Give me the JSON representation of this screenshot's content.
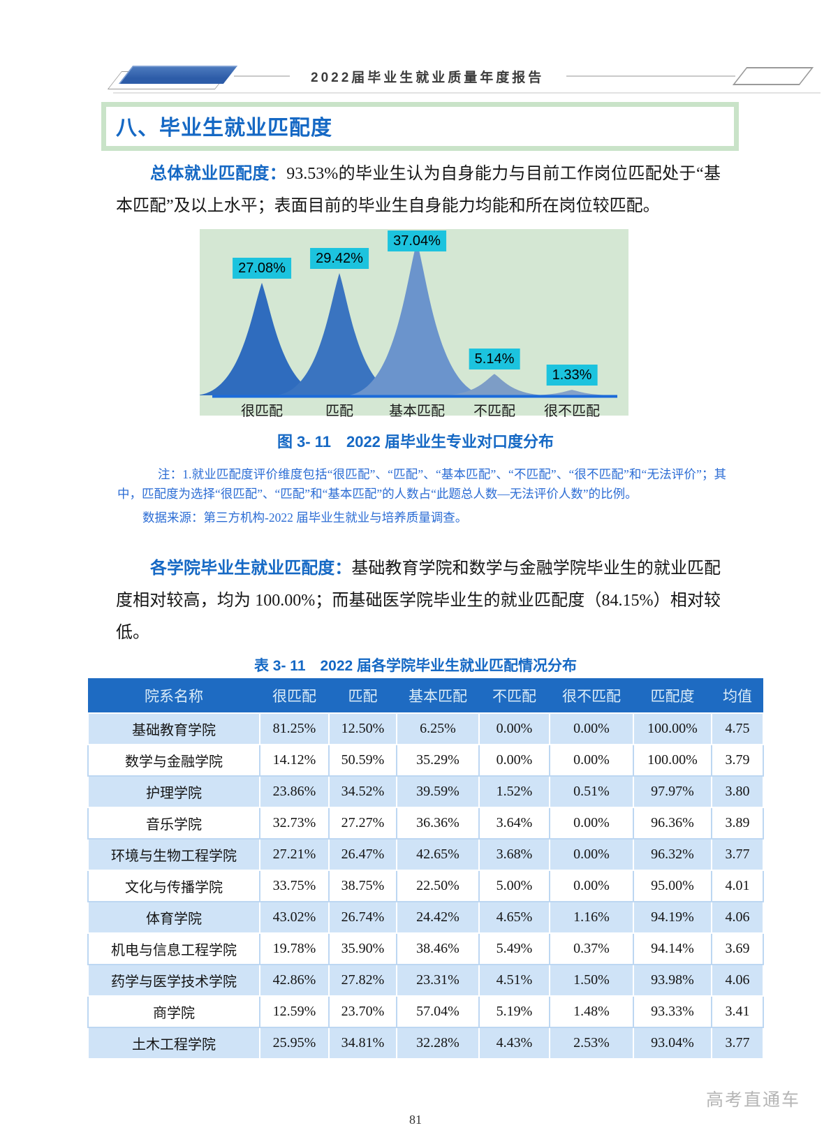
{
  "theme": {
    "accent_blue": "#1568c4",
    "note_blue": "#2b6cd4",
    "table_header_bg": "#1e6bc2",
    "table_header_text": "#dcedf8",
    "row_alt_bg": "#cfe3f7",
    "green_border": "#c9e3c8",
    "chart_bg": "#d4e7d3",
    "tag_bg": "#1cc3de",
    "deco_blue": "#2d5ca8",
    "watermark_gray": "#b5b5b5"
  },
  "header": {
    "title": "2022届毕业生就业质量年度报告"
  },
  "section": {
    "title": "八、毕业生就业匹配度"
  },
  "para1": {
    "lead": "总体就业匹配度：",
    "body": "93.53%的毕业生认为自身能力与目前工作岗位匹配处于“基本匹配”及以上水平；表面目前的毕业生自身能力均能和所在岗位较匹配。"
  },
  "chart_data": {
    "type": "area",
    "title": "图 3- 11　2022 届毕业生专业对口度分布",
    "categories": [
      "很匹配",
      "匹配",
      "基本匹配",
      "不匹配",
      "很不匹配"
    ],
    "values": [
      27.08,
      29.42,
      37.04,
      5.14,
      1.33
    ],
    "labels": [
      "27.08%",
      "29.42%",
      "37.04%",
      "5.14%",
      "1.33%"
    ],
    "colors": [
      "#2f6cbe",
      "#3a74c0",
      "#6b94cc",
      "#7d9dc6",
      "#86a2c8"
    ],
    "label_bg": "#1cc3de",
    "axis_color": "#1c6bd9",
    "background": "#d4e7d3",
    "ylim": [
      0,
      40
    ],
    "grid": false,
    "legend": "none"
  },
  "figure": {
    "caption": "图 3- 11　2022 届毕业生专业对口度分布"
  },
  "notes": {
    "note1": "注：1.就业匹配度评价维度包括“很匹配”、“匹配”、“基本匹配”、“不匹配”、“很不匹配”和“无法评价”；其中，匹配度为选择“很匹配”、“匹配”和“基本匹配”的人数占“此题总人数—无法评价人数”的比例。",
    "source": "数据来源：第三方机构-2022 届毕业生就业与培养质量调查。"
  },
  "para2": {
    "lead": "各学院毕业生就业匹配度：",
    "body": "基础教育学院和数学与金融学院毕业生的就业匹配度相对较高，均为 100.00%；而基础医学院毕业生的就业匹配度（84.15%）相对较低。"
  },
  "table": {
    "caption": "表 3- 11　2022 届各学院毕业生就业匹配情况分布",
    "headers": [
      "院系名称",
      "很匹配",
      "匹配",
      "基本匹配",
      "不匹配",
      "很不匹配",
      "匹配度",
      "均值"
    ],
    "rows": [
      [
        "基础教育学院",
        "81.25%",
        "12.50%",
        "6.25%",
        "0.00%",
        "0.00%",
        "100.00%",
        "4.75"
      ],
      [
        "数学与金融学院",
        "14.12%",
        "50.59%",
        "35.29%",
        "0.00%",
        "0.00%",
        "100.00%",
        "3.79"
      ],
      [
        "护理学院",
        "23.86%",
        "34.52%",
        "39.59%",
        "1.52%",
        "0.51%",
        "97.97%",
        "3.80"
      ],
      [
        "音乐学院",
        "32.73%",
        "27.27%",
        "36.36%",
        "3.64%",
        "0.00%",
        "96.36%",
        "3.89"
      ],
      [
        "环境与生物工程学院",
        "27.21%",
        "26.47%",
        "42.65%",
        "3.68%",
        "0.00%",
        "96.32%",
        "3.77"
      ],
      [
        "文化与传播学院",
        "33.75%",
        "38.75%",
        "22.50%",
        "5.00%",
        "0.00%",
        "95.00%",
        "4.01"
      ],
      [
        "体育学院",
        "43.02%",
        "26.74%",
        "24.42%",
        "4.65%",
        "1.16%",
        "94.19%",
        "4.06"
      ],
      [
        "机电与信息工程学院",
        "19.78%",
        "35.90%",
        "38.46%",
        "5.49%",
        "0.37%",
        "94.14%",
        "3.69"
      ],
      [
        "药学与医学技术学院",
        "42.86%",
        "27.82%",
        "23.31%",
        "4.51%",
        "1.50%",
        "93.98%",
        "4.06"
      ],
      [
        "商学院",
        "12.59%",
        "23.70%",
        "57.04%",
        "5.19%",
        "1.48%",
        "93.33%",
        "3.41"
      ],
      [
        "土木工程学院",
        "25.95%",
        "34.81%",
        "32.28%",
        "4.43%",
        "2.53%",
        "93.04%",
        "3.77"
      ]
    ]
  },
  "footer": {
    "page_number": "81",
    "watermark": "高考直通车"
  }
}
